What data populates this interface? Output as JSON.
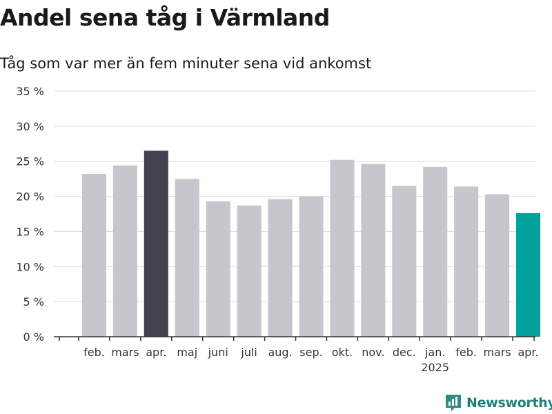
{
  "title": "Andel sena tåg i Värmland",
  "subtitle": "Tåg som var mer än fem minuter sena vid ankomst",
  "brand": "Newsworthy",
  "colors": {
    "bar_default": "#c7c6cc",
    "bar_highlight_dark": "#43424e",
    "bar_highlight_accent": "#00a19a",
    "grid": "#dcdcdc",
    "axis": "#333333",
    "brand": "#1f7f7a"
  },
  "chart_data": {
    "type": "bar",
    "y_unit": "%",
    "ylim": [
      0,
      35
    ],
    "yticks": [
      0,
      5,
      10,
      15,
      20,
      25,
      30,
      35
    ],
    "ytick_labels": [
      "0 %",
      "5 %",
      "10 %",
      "15 %",
      "20 %",
      "25 %",
      "30 %",
      "35 %"
    ],
    "grid": true,
    "categories": [
      "feb.",
      "mars",
      "apr.",
      "maj",
      "juni",
      "juli",
      "aug.",
      "sep.",
      "okt.",
      "nov.",
      "dec.",
      "jan.",
      "feb.",
      "mars",
      "apr."
    ],
    "year_labels": [
      {
        "index": 11,
        "label": "2025"
      }
    ],
    "values": [
      23.2,
      24.4,
      26.5,
      22.5,
      19.3,
      18.7,
      19.6,
      20.0,
      25.2,
      24.6,
      21.5,
      24.2,
      21.4,
      20.3,
      17.6
    ],
    "highlight": {
      "2": "dark",
      "14": "accent"
    }
  }
}
